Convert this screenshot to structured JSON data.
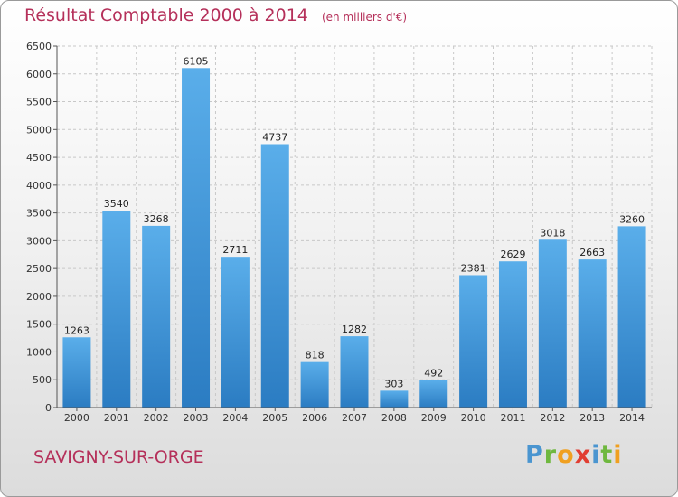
{
  "title": "Résultat Comptable 2000 à 2014",
  "unit": "(en milliers d'€)",
  "city": "SAVIGNY-SUR-ORGE",
  "logo": "Proxiti",
  "colors": {
    "bar": "#3a8fd6",
    "title": "#b5305a",
    "grid": "#c8c8c8"
  },
  "chart_data": {
    "type": "bar",
    "categories": [
      "2000",
      "2001",
      "2002",
      "2003",
      "2004",
      "2005",
      "2006",
      "2007",
      "2008",
      "2009",
      "2010",
      "2011",
      "2012",
      "2013",
      "2014"
    ],
    "values": [
      1263,
      3540,
      3268,
      6105,
      2711,
      4737,
      818,
      1282,
      303,
      492,
      2381,
      2629,
      3018,
      2663,
      3260
    ],
    "ylim": [
      0,
      6500
    ],
    "yticks": [
      0,
      500,
      1000,
      1500,
      2000,
      2500,
      3000,
      3500,
      4000,
      4500,
      5000,
      5500,
      6000,
      6500
    ],
    "grid": true,
    "title": "Résultat Comptable 2000 à 2014",
    "xlabel": "",
    "ylabel": ""
  }
}
